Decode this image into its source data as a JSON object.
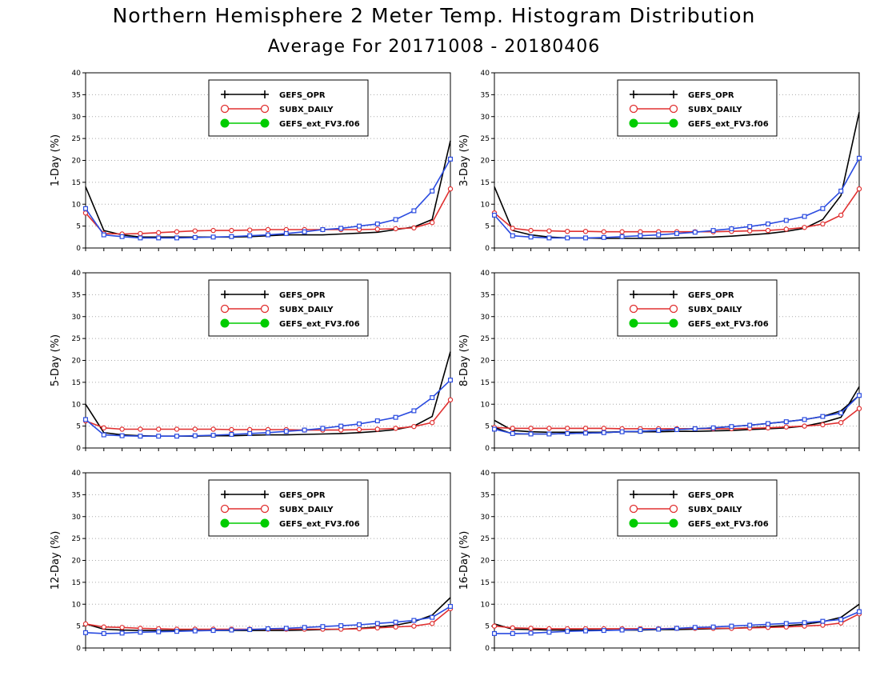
{
  "page": {
    "title": "Northern Hemisphere 2 Meter Temp. Histogram Distribution",
    "subtitle": "Average For 20171008 - 20180406"
  },
  "colors": {
    "gefs_opr": "#000000",
    "subx_daily": "#e03030",
    "gefs_ext": "#00cc00",
    "fv3_blue": "#2a4be0",
    "grid": "#aaaaaa"
  },
  "legend_entries": [
    {
      "label": "GEFS_OPR",
      "color": "#000000",
      "marker": "plus"
    },
    {
      "label": "SUBX_DAILY",
      "color": "#e03030",
      "marker": "open-circle"
    },
    {
      "label": "GEFS_ext_FV3.f06",
      "color": "#00cc00",
      "marker": "filled-circle"
    }
  ],
  "chart_data": [
    {
      "type": "line",
      "ylabel": "1-Day (%)",
      "ylim": [
        0,
        40
      ],
      "yticks": [
        0,
        5,
        10,
        15,
        20,
        25,
        30,
        35,
        40
      ],
      "grid": "horizontal dotted",
      "legend_position": "top-center",
      "x": [
        1,
        2,
        3,
        4,
        5,
        6,
        7,
        8,
        9,
        10,
        11,
        12,
        13,
        14,
        15,
        16,
        17,
        18,
        19,
        20,
        21
      ],
      "series": [
        {
          "name": "GEFS_OPR",
          "color": "#000000",
          "marker": "none",
          "values": [
            14,
            4,
            3,
            2.5,
            2.5,
            2.5,
            2.5,
            2.5,
            2.5,
            2.6,
            2.8,
            3,
            3,
            3,
            3.2,
            3.4,
            3.6,
            4.2,
            4.8,
            6.5,
            24.5
          ]
        },
        {
          "name": "SUBX_DAILY",
          "color": "#e03030",
          "marker": "open-circle",
          "values": [
            8,
            3.3,
            3.2,
            3.3,
            3.5,
            3.7,
            3.9,
            4,
            4,
            4.1,
            4.2,
            4.2,
            4.2,
            4.2,
            4.2,
            4.2,
            4.3,
            4.4,
            4.6,
            5.8,
            13.5
          ]
        },
        {
          "values": [
            9,
            3,
            2.6,
            2.3,
            2.3,
            2.3,
            2.4,
            2.5,
            2.6,
            2.8,
            3,
            3.3,
            3.7,
            4.2,
            4.5,
            5,
            5.5,
            6.5,
            8.5,
            13,
            20.3
          ],
          "color": "#2a4be0",
          "marker": "open-square"
        }
      ]
    },
    {
      "type": "line",
      "ylabel": "3-Day (%)",
      "ylim": [
        0,
        40
      ],
      "yticks": [
        0,
        5,
        10,
        15,
        20,
        25,
        30,
        35,
        40
      ],
      "grid": "horizontal dotted",
      "legend_position": "top-center",
      "x": [
        1,
        2,
        3,
        4,
        5,
        6,
        7,
        8,
        9,
        10,
        11,
        12,
        13,
        14,
        15,
        16,
        17,
        18,
        19,
        20,
        21
      ],
      "series": [
        {
          "name": "GEFS_OPR",
          "color": "#000000",
          "marker": "none",
          "values": [
            14,
            4,
            3,
            2.5,
            2.3,
            2.3,
            2.2,
            2.2,
            2.2,
            2.2,
            2.3,
            2.4,
            2.5,
            2.7,
            3,
            3.3,
            3.8,
            4.5,
            6.5,
            12,
            31
          ]
        },
        {
          "name": "SUBX_DAILY",
          "color": "#e03030",
          "marker": "open-circle",
          "values": [
            8,
            4.5,
            4,
            3.9,
            3.8,
            3.8,
            3.7,
            3.7,
            3.7,
            3.7,
            3.7,
            3.7,
            3.7,
            3.8,
            3.9,
            4,
            4.3,
            4.7,
            5.5,
            7.5,
            13.5
          ]
        },
        {
          "values": [
            7.5,
            2.8,
            2.5,
            2.3,
            2.3,
            2.3,
            2.4,
            2.6,
            2.8,
            3,
            3.3,
            3.6,
            4,
            4.4,
            4.9,
            5.5,
            6.3,
            7.2,
            9,
            13,
            20.5
          ],
          "color": "#2a4be0",
          "marker": "open-square"
        }
      ]
    },
    {
      "type": "line",
      "ylabel": "5-Day (%)",
      "ylim": [
        0,
        40
      ],
      "yticks": [
        0,
        5,
        10,
        15,
        20,
        25,
        30,
        35,
        40
      ],
      "grid": "horizontal dotted",
      "legend_position": "top-center",
      "x": [
        1,
        2,
        3,
        4,
        5,
        6,
        7,
        8,
        9,
        10,
        11,
        12,
        13,
        14,
        15,
        16,
        17,
        18,
        19,
        20,
        21
      ],
      "series": [
        {
          "name": "GEFS_OPR",
          "color": "#000000",
          "marker": "none",
          "values": [
            10,
            3.5,
            3,
            2.8,
            2.7,
            2.7,
            2.7,
            2.8,
            2.8,
            2.9,
            3,
            3,
            3.1,
            3.2,
            3.3,
            3.5,
            3.8,
            4.2,
            5,
            7.2,
            22
          ]
        },
        {
          "name": "SUBX_DAILY",
          "color": "#e03030",
          "marker": "open-circle",
          "values": [
            6.2,
            4.6,
            4.3,
            4.3,
            4.3,
            4.3,
            4.3,
            4.3,
            4.2,
            4.2,
            4.2,
            4.2,
            4.1,
            4.1,
            4.1,
            4.2,
            4.3,
            4.5,
            4.9,
            5.8,
            11
          ]
        },
        {
          "values": [
            6.5,
            3,
            2.8,
            2.7,
            2.7,
            2.7,
            2.8,
            2.9,
            3.1,
            3.3,
            3.5,
            3.8,
            4.1,
            4.5,
            5,
            5.5,
            6.2,
            7,
            8.5,
            11.5,
            15.5
          ],
          "color": "#2a4be0",
          "marker": "open-square"
        }
      ]
    },
    {
      "type": "line",
      "ylabel": "8-Day (%)",
      "ylim": [
        0,
        40
      ],
      "yticks": [
        0,
        5,
        10,
        15,
        20,
        25,
        30,
        35,
        40
      ],
      "grid": "horizontal dotted",
      "legend_position": "top-center",
      "x": [
        1,
        2,
        3,
        4,
        5,
        6,
        7,
        8,
        9,
        10,
        11,
        12,
        13,
        14,
        15,
        16,
        17,
        18,
        19,
        20,
        21
      ],
      "series": [
        {
          "name": "GEFS_OPR",
          "color": "#000000",
          "marker": "none",
          "values": [
            6.3,
            4,
            3.7,
            3.6,
            3.6,
            3.6,
            3.6,
            3.7,
            3.7,
            3.7,
            3.8,
            3.8,
            3.9,
            4,
            4.2,
            4.4,
            4.6,
            5,
            5.8,
            7,
            14
          ]
        },
        {
          "name": "SUBX_DAILY",
          "color": "#e03030",
          "marker": "open-circle",
          "values": [
            4.7,
            4.5,
            4.5,
            4.5,
            4.5,
            4.5,
            4.5,
            4.4,
            4.4,
            4.4,
            4.4,
            4.4,
            4.4,
            4.4,
            4.5,
            4.6,
            4.8,
            5,
            5.3,
            5.8,
            9
          ]
        },
        {
          "values": [
            4.7,
            3.2,
            3.2,
            3.2,
            3.3,
            3.4,
            3.5,
            3.7,
            3.8,
            4,
            4.2,
            4.4,
            4.6,
            4.9,
            5.2,
            5.6,
            6,
            6.5,
            7.2,
            8.5,
            12
          ]
        },
        {
          "values": [
            4.3,
            3.3,
            3.2,
            3.2,
            3.3,
            3.4,
            3.5,
            3.7,
            3.8,
            4,
            4.2,
            4.4,
            4.6,
            4.9,
            5.2,
            5.6,
            6,
            6.5,
            7.2,
            8,
            12
          ],
          "color": "#2a4be0",
          "marker": "open-square"
        }
      ]
    },
    {
      "type": "line",
      "ylabel": "12-Day (%)",
      "ylim": [
        0,
        40
      ],
      "yticks": [
        0,
        5,
        10,
        15,
        20,
        25,
        30,
        35,
        40
      ],
      "grid": "horizontal dotted",
      "legend_position": "top-center",
      "x": [
        1,
        2,
        3,
        4,
        5,
        6,
        7,
        8,
        9,
        10,
        11,
        12,
        13,
        14,
        15,
        16,
        17,
        18,
        19,
        20,
        21
      ],
      "series": [
        {
          "name": "GEFS_OPR",
          "color": "#000000",
          "marker": "none",
          "values": [
            5.5,
            4.3,
            4.1,
            4,
            4,
            4,
            4,
            4,
            4,
            4,
            4,
            4,
            4.1,
            4.2,
            4.3,
            4.5,
            4.8,
            5.2,
            6,
            7.5,
            11.5
          ]
        },
        {
          "name": "SUBX_DAILY",
          "color": "#e03030",
          "marker": "open-circle",
          "values": [
            5.5,
            4.8,
            4.7,
            4.5,
            4.4,
            4.3,
            4.3,
            4.3,
            4.3,
            4.3,
            4.3,
            4.3,
            4.3,
            4.3,
            4.3,
            4.4,
            4.6,
            4.8,
            5,
            5.6,
            9
          ]
        },
        {
          "values": [
            3.5,
            3.3,
            3.4,
            3.6,
            3.7,
            3.8,
            3.9,
            4,
            4.1,
            4.2,
            4.4,
            4.5,
            4.7,
            4.9,
            5.1,
            5.3,
            5.6,
            5.9,
            6.3,
            7,
            9.5
          ],
          "color": "#2a4be0",
          "marker": "open-square"
        }
      ]
    },
    {
      "type": "line",
      "ylabel": "16-Day (%)",
      "ylim": [
        0,
        40
      ],
      "yticks": [
        0,
        5,
        10,
        15,
        20,
        25,
        30,
        35,
        40
      ],
      "grid": "horizontal dotted",
      "legend_position": "top-center",
      "x": [
        1,
        2,
        3,
        4,
        5,
        6,
        7,
        8,
        9,
        10,
        11,
        12,
        13,
        14,
        15,
        16,
        17,
        18,
        19,
        20,
        21
      ],
      "series": [
        {
          "name": "GEFS_OPR",
          "color": "#000000",
          "marker": "none",
          "values": [
            5.5,
            4.3,
            4.2,
            4.1,
            4.1,
            4.1,
            4.1,
            4.1,
            4.1,
            4.2,
            4.2,
            4.3,
            4.4,
            4.5,
            4.7,
            4.9,
            5.1,
            5.4,
            6,
            7,
            10
          ]
        },
        {
          "name": "SUBX_DAILY",
          "color": "#e03030",
          "marker": "open-circle",
          "values": [
            5,
            4.6,
            4.5,
            4.4,
            4.4,
            4.4,
            4.4,
            4.4,
            4.4,
            4.4,
            4.5,
            4.5,
            4.5,
            4.5,
            4.6,
            4.7,
            4.8,
            5,
            5.2,
            5.7,
            7.8
          ]
        },
        {
          "values": [
            3.3,
            3.3,
            3.4,
            3.6,
            3.8,
            3.9,
            4,
            4.1,
            4.2,
            4.3,
            4.5,
            4.7,
            4.8,
            5,
            5.2,
            5.4,
            5.6,
            5.8,
            6.1,
            6.5,
            8.3
          ],
          "color": "#2a4be0",
          "marker": "open-square"
        }
      ]
    }
  ]
}
